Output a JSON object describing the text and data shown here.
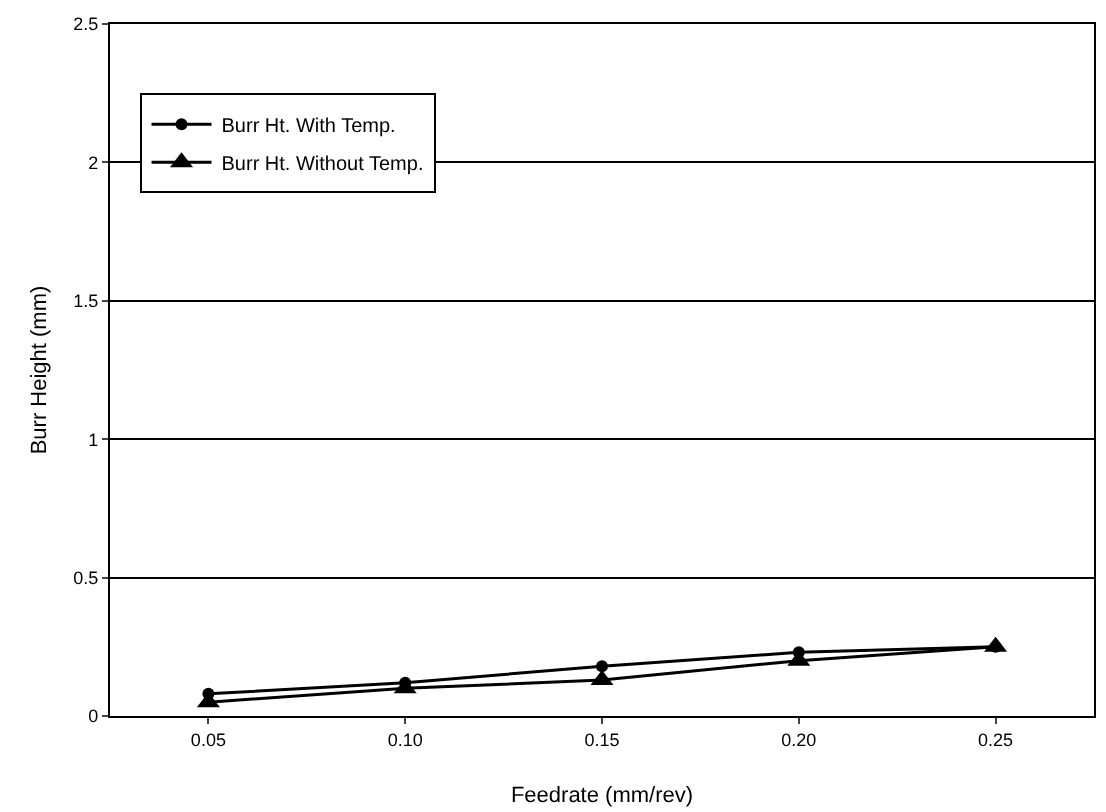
{
  "chart_data": {
    "type": "line",
    "xlabel": "Feedrate (mm/rev)",
    "ylabel": "Burr Height (mm)",
    "categories": [
      "0.05",
      "0.10",
      "0.15",
      "0.20",
      "0.25"
    ],
    "series": [
      {
        "name": "Burr Ht. With Temp.",
        "color": "#000000",
        "marker": "circle",
        "values": [
          0.08,
          0.12,
          0.18,
          0.23,
          0.25
        ]
      },
      {
        "name": "Burr Ht. Without Temp.",
        "color": "#000000",
        "marker": "triangle",
        "values": [
          0.05,
          0.1,
          0.13,
          0.2,
          0.25
        ]
      }
    ],
    "ylim": [
      0,
      2.5
    ],
    "yticks": [
      0,
      0.5,
      1,
      1.5,
      2,
      2.5
    ],
    "grid": "y",
    "legend": "top left",
    "line_style": "solid"
  }
}
